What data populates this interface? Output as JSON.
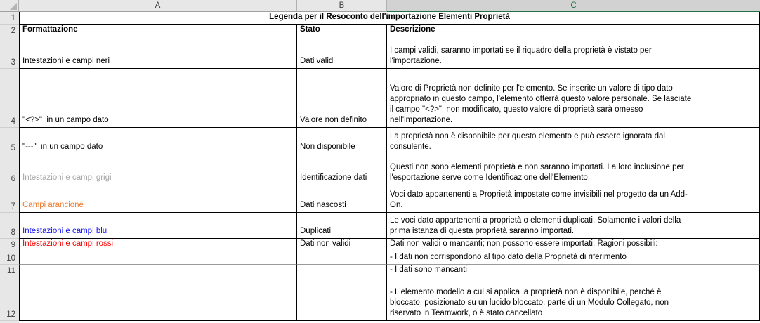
{
  "sheet": {
    "column_headers": [
      "A",
      "B",
      "C"
    ],
    "selected_column": "C",
    "rows": [
      {
        "num": "1",
        "cells": [
          {
            "col": "A",
            "merged": true,
            "bold": true,
            "text": "Legenda per il Resoconto dell'importazione Elementi Proprietà"
          }
        ]
      },
      {
        "num": "2",
        "cells": [
          {
            "col": "A",
            "bold": true,
            "text": "Formattazione"
          },
          {
            "col": "B",
            "bold": true,
            "text": "Stato"
          },
          {
            "col": "C",
            "bold": true,
            "text": "Descrizione"
          }
        ]
      },
      {
        "num": "3",
        "cells": [
          {
            "col": "A",
            "text": "Intestazioni e campi neri"
          },
          {
            "col": "B",
            "text": "Dati validi"
          },
          {
            "col": "C",
            "text": "I campi validi, saranno importati se il riquadro della proprietà è vistato per\nl'importazione."
          }
        ]
      },
      {
        "num": "4",
        "cells": [
          {
            "col": "A",
            "text": "\"<?>\"  in un campo dato"
          },
          {
            "col": "B",
            "text": "Valore non definito"
          },
          {
            "col": "C",
            "text": "Valore di Proprietà non definito per l'elemento. Se inserite un valore di tipo dato\nappropriato in questo campo, l'elemento otterrà questo valore personale. Se lasciate\nil campo \"<?>\"  non modificato, questo valore di proprietà sarà omesso\nnell'importazione."
          }
        ]
      },
      {
        "num": "5",
        "cells": [
          {
            "col": "A",
            "text": "\"---\"  in un campo dato"
          },
          {
            "col": "B",
            "text": "Non disponibile"
          },
          {
            "col": "C",
            "text": "La proprietà non è disponibile per questo elemento e può essere ignorata dal\nconsulente."
          }
        ]
      },
      {
        "num": "6",
        "cells": [
          {
            "col": "A",
            "text_color": "gray",
            "text": "Intestazioni e campi grigi"
          },
          {
            "col": "B",
            "text": "Identificazione dati"
          },
          {
            "col": "C",
            "text": "Questi non sono elementi proprietà e non saranno importati. La loro inclusione per\nl'esportazione serve come Identificazione dell'Elemento."
          }
        ]
      },
      {
        "num": "7",
        "cells": [
          {
            "col": "A",
            "text_color": "orange",
            "text": "Campi arancione"
          },
          {
            "col": "B",
            "text": "Dati nascosti"
          },
          {
            "col": "C",
            "text": "Voci dato appartenenti a Proprietà impostate come invisibili nel progetto da un Add-\nOn."
          }
        ]
      },
      {
        "num": "8",
        "cells": [
          {
            "col": "A",
            "text_color": "blue",
            "text": "Intestazioni e campi blu"
          },
          {
            "col": "B",
            "text": "Duplicati"
          },
          {
            "col": "C",
            "text": "Le voci dato appartenenti a proprietà o elementi duplicati. Solamente i valori della\nprima istanza di questa proprietà saranno importati."
          }
        ]
      },
      {
        "num": "9",
        "cells": [
          {
            "col": "A",
            "text_color": "red",
            "text": "Intestazioni e campi rossi"
          },
          {
            "col": "B",
            "text": "Dati non validi"
          },
          {
            "col": "C",
            "text": "Dati non validi o mancanti; non possono essere importati. Ragioni possibili:"
          }
        ]
      },
      {
        "num": "10",
        "cells": [
          {
            "col": "A",
            "text": ""
          },
          {
            "col": "B",
            "text": ""
          },
          {
            "col": "C",
            "text": "- I dati non corrispondono al tipo dato della Proprietà di riferimento"
          }
        ]
      },
      {
        "num": "11",
        "cells": [
          {
            "col": "A",
            "text": ""
          },
          {
            "col": "B",
            "text": ""
          },
          {
            "col": "C",
            "text": "- I dati sono mancanti"
          }
        ]
      },
      {
        "num": "12",
        "cells": [
          {
            "col": "A",
            "text": ""
          },
          {
            "col": "B",
            "text": ""
          },
          {
            "col": "C",
            "text": "- L'elemento modello a cui si applica la proprietà non è disponibile, perché è\nbloccato, posizionato su un lucido bloccato, parte di un Modulo Collegato, non\nriservato in Teamwork, o è stato cancellato"
          }
        ]
      }
    ]
  },
  "colors": {
    "black_text": "#000000",
    "gray_text": "#a6a6a6",
    "orange_text": "#ed7d31",
    "blue_text": "#1414f0",
    "red_text": "#ff0000",
    "excel_green": "#217346",
    "header_bg": "#e7e7e7",
    "selected_header_bg": "#d2d2d2",
    "gridline": "#cfcfcf",
    "cell_border": "#000000"
  }
}
